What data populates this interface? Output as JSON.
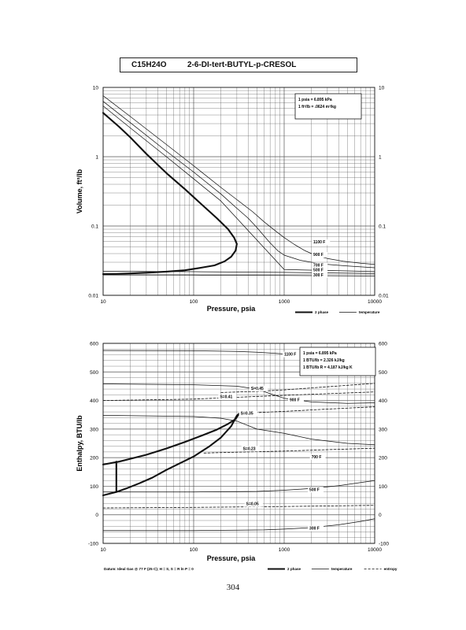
{
  "title": {
    "formula": "C15H24O",
    "compound": "2-6-DI-tert-BUTYL-p-CRESOL"
  },
  "page_number": "304",
  "chart_data": [
    {
      "type": "line",
      "xlabel": "Pressure,  psia",
      "ylabel": "Volume,  ft^3/lb",
      "xscale": "log",
      "yscale": "log",
      "xlim": [
        10,
        10000
      ],
      "ylim": [
        0.01,
        10
      ],
      "grid": true,
      "xticks": [
        "10",
        "100",
        "1000",
        "10000"
      ],
      "yticks": [
        {
          "value": 10,
          "label": "10"
        },
        {
          "value": 1,
          "label": "1"
        },
        {
          "value": 0.1,
          "label": "0.1"
        },
        {
          "value": 0.01,
          "label": "0.01"
        }
      ],
      "note_lines": [
        "1 psia  =  6.895 kPa",
        "1 ft^3/lb  =  .0624 m^3/kg"
      ],
      "legend": [
        {
          "style": "thick",
          "label": "2 phase"
        },
        {
          "style": "thin",
          "label": "temperature"
        }
      ],
      "series": [
        {
          "name": "2 phase",
          "style": "thick",
          "x": [
            10,
            15,
            20,
            30,
            50,
            80,
            120,
            180,
            240,
            280,
            300,
            290,
            260,
            220,
            170,
            120,
            80,
            50,
            30,
            20,
            14,
            10
          ],
          "y": [
            4.3,
            2.7,
            1.9,
            1.1,
            0.58,
            0.34,
            0.21,
            0.13,
            0.09,
            0.068,
            0.055,
            0.044,
            0.036,
            0.031,
            0.027,
            0.025,
            0.023,
            0.022,
            0.0212,
            0.0207,
            0.0204,
            0.0202
          ]
        },
        {
          "name": "1100 F",
          "style": "thin",
          "x": [
            10,
            20,
            50,
            100,
            200,
            300,
            450,
            600,
            800,
            1000,
            1300,
            1700,
            2200,
            3000,
            4500,
            7000,
            10000
          ],
          "y": [
            7.6,
            3.8,
            1.5,
            0.74,
            0.36,
            0.24,
            0.16,
            0.115,
            0.085,
            0.068,
            0.054,
            0.044,
            0.038,
            0.034,
            0.031,
            0.029,
            0.028
          ]
        },
        {
          "name": "900 F",
          "style": "thin",
          "x": [
            10,
            20,
            50,
            100,
            200,
            300,
            400,
            500,
            600,
            700,
            850,
            1000,
            1500,
            2000,
            3000,
            5000,
            10000
          ],
          "y": [
            6.3,
            3.1,
            1.2,
            0.6,
            0.29,
            0.18,
            0.13,
            0.095,
            0.072,
            0.057,
            0.044,
            0.038,
            0.032,
            0.03,
            0.028,
            0.0265,
            0.025
          ]
        },
        {
          "name": "700 F",
          "style": "thin",
          "x": [
            10,
            20,
            50,
            100,
            200,
            1000,
            5000,
            10000
          ],
          "y": [
            5.4,
            2.6,
            1.0,
            0.48,
            0.23,
            0.0235,
            0.0225,
            0.022
          ]
        },
        {
          "name": "500 F",
          "style": "thin",
          "x": [
            10,
            100,
            1000,
            10000
          ],
          "y": [
            0.0222,
            0.0219,
            0.0214,
            0.0207
          ]
        },
        {
          "name": "300 F",
          "style": "thin",
          "x": [
            10,
            100,
            1000,
            10000
          ],
          "y": [
            0.0197,
            0.0196,
            0.0194,
            0.019
          ]
        }
      ],
      "labels": [
        {
          "text": "1100 F",
          "x": 2100,
          "y": 0.056
        },
        {
          "text": "900 F",
          "x": 2100,
          "y": 0.037
        },
        {
          "text": "700 F",
          "x": 2100,
          "y": 0.026
        },
        {
          "text": "500 F",
          "x": 2100,
          "y": 0.0222
        },
        {
          "text": "300 F",
          "x": 2100,
          "y": 0.0188
        }
      ]
    },
    {
      "type": "line",
      "xlabel": "Pressure,  psia",
      "ylabel": "Enthalpy,  BTU/lb",
      "xscale": "log",
      "yscale": "linear",
      "xlim": [
        10,
        10000
      ],
      "ylim": [
        -100,
        600
      ],
      "grid": true,
      "xticks": [
        "10",
        "100",
        "1000",
        "10000"
      ],
      "yticks": [
        {
          "value": 600,
          "label": "600"
        },
        {
          "value": 500,
          "label": "500"
        },
        {
          "value": 400,
          "label": "400"
        },
        {
          "value": 300,
          "label": "300"
        },
        {
          "value": 200,
          "label": "200"
        },
        {
          "value": 100,
          "label": "100"
        },
        {
          "value": 0,
          "label": "0"
        },
        {
          "value": -100,
          "label": "-100"
        }
      ],
      "note_lines": [
        "1 psia  =  6.895 kPa",
        "1 BTU/lb  =  2.326 kJ/kg",
        "1 BTU/lb R  =  4.187 kJ/kg K"
      ],
      "datum": "Datum: Ideal Gas @ 77 F (25 C);  H = S,  S = R ln P = 0",
      "legend": [
        {
          "style": "thick",
          "label": "2 phase"
        },
        {
          "style": "thin",
          "label": "temperature"
        },
        {
          "style": "dashed",
          "label": "entropy"
        }
      ],
      "series": [
        {
          "name": "2 phase",
          "style": "thick",
          "x": [
            10,
            15,
            20,
            30,
            50,
            80,
            120,
            180,
            240,
            290,
            320,
            300,
            260,
            200,
            150,
            100,
            70,
            50,
            35,
            25,
            18,
            14,
            10
          ],
          "y": [
            176,
            186,
            196,
            210,
            232,
            255,
            276,
            298,
            318,
            335,
            355,
            347,
            310,
            270,
            240,
            204,
            180,
            157,
            130,
            110,
            92,
            80,
            68
          ]
        },
        {
          "name": "two-phase tie line",
          "style": "thick",
          "x": [
            14,
            14
          ],
          "y": [
            186,
            80
          ]
        },
        {
          "name": "1100 F",
          "style": "thin",
          "x": [
            10,
            100,
            300,
            500,
            1000,
            2000,
            5000,
            10000
          ],
          "y": [
            575,
            574,
            572,
            569,
            563,
            553,
            532,
            512
          ]
        },
        {
          "name": "900 F",
          "style": "thin",
          "x": [
            10,
            100,
            300,
            500,
            700,
            1000,
            2000,
            5000,
            10000
          ],
          "y": [
            458,
            455,
            450,
            440,
            424,
            408,
            395,
            390,
            392
          ]
        },
        {
          "name": "700 F",
          "style": "thin",
          "x": [
            10,
            100,
            200,
            300,
            500,
            1000,
            2000,
            5000,
            10000
          ],
          "y": [
            348,
            344,
            338,
            328,
            300,
            285,
            265,
            250,
            245
          ]
        },
        {
          "name": "500 F",
          "style": "thin",
          "x": [
            10,
            100,
            300,
            500,
            1000,
            2000,
            4000,
            7000,
            10000
          ],
          "y": [
            80,
            80,
            81,
            82,
            86,
            92,
            102,
            113,
            120
          ]
        },
        {
          "name": "300 F",
          "style": "thin",
          "x": [
            10,
            100,
            300,
            600,
            1000,
            2000,
            4000,
            7000,
            10000
          ],
          "y": [
            -55,
            -55,
            -54,
            -53,
            -50,
            -45,
            -35,
            -23,
            -14
          ]
        },
        {
          "name": "S=0.45",
          "style": "dashed",
          "x": [
            200,
            500,
            1000,
            2000,
            5000,
            10000
          ],
          "y": [
            428,
            432,
            437,
            444,
            453,
            460
          ]
        },
        {
          "name": "S=0.41",
          "style": "dashed",
          "x": [
            10,
            100,
            200,
            400,
            1000,
            3000,
            10000
          ],
          "y": [
            400,
            405,
            409,
            413,
            418,
            424,
            430
          ]
        },
        {
          "name": "S=0.35",
          "style": "dashed",
          "x": [
            320,
            1000,
            3000,
            10000
          ],
          "y": [
            355,
            362,
            370,
            378
          ]
        },
        {
          "name": "S=0.23",
          "style": "dashed",
          "x": [
            130,
            300,
            1000,
            3000,
            10000
          ],
          "y": [
            216,
            219,
            223,
            228,
            233
          ]
        },
        {
          "name": "S=0.05",
          "style": "dashed",
          "x": [
            10,
            100,
            1000,
            10000
          ],
          "y": [
            24,
            26,
            29,
            33
          ]
        }
      ],
      "labels": [
        {
          "text": "1100 F",
          "x": 1000,
          "y": 557
        },
        {
          "text": "900 F",
          "x": 1150,
          "y": 397
        },
        {
          "text": "700 F",
          "x": 2000,
          "y": 198
        },
        {
          "text": "500 F",
          "x": 1900,
          "y": 83
        },
        {
          "text": "300 F",
          "x": 1900,
          "y": -52
        },
        {
          "text": "S=0.45",
          "x": 430,
          "y": 438
        },
        {
          "text": "S=0.41",
          "x": 195,
          "y": 408
        },
        {
          "text": "S=0.35",
          "x": 330,
          "y": 350
        },
        {
          "text": "S=0.23",
          "x": 350,
          "y": 227
        },
        {
          "text": "S=0.05",
          "x": 380,
          "y": 33
        }
      ]
    }
  ]
}
